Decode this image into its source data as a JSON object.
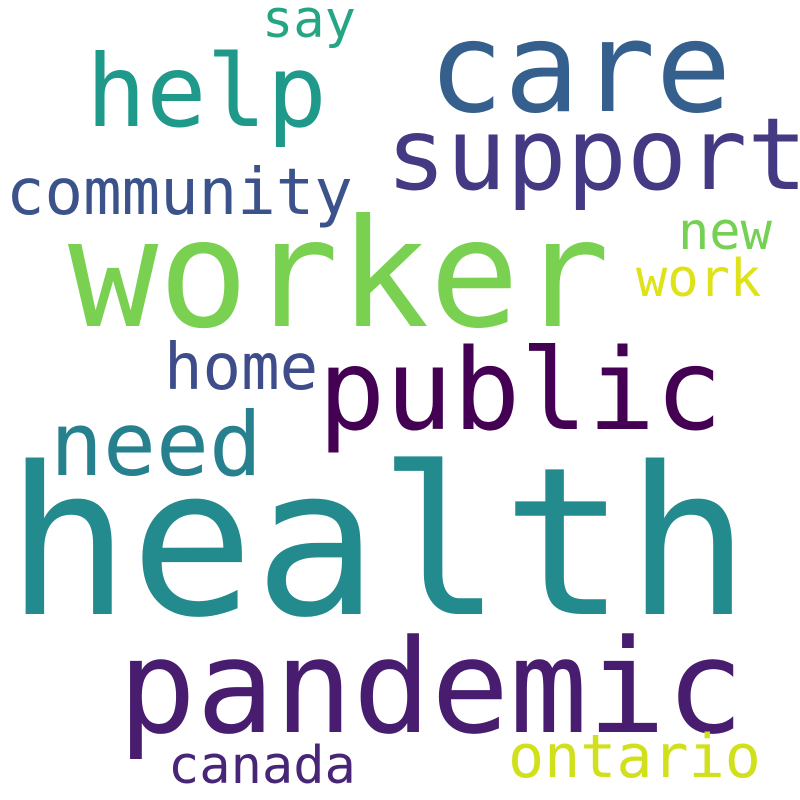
{
  "background": "#ffffff",
  "words": [
    {
      "text": "health",
      "color": "#238a8d"
    },
    {
      "text": "worker",
      "color": "#7ad151"
    },
    {
      "text": "pandemic",
      "color": "#481c6e"
    },
    {
      "text": "care",
      "color": "#355f8d"
    },
    {
      "text": "public",
      "color": "#440154"
    },
    {
      "text": "support",
      "color": "#443983"
    },
    {
      "text": "help",
      "color": "#1f998a"
    },
    {
      "text": "need",
      "color": "#27808e"
    },
    {
      "text": "community",
      "color": "#3b528b"
    },
    {
      "text": "home",
      "color": "#3e4c8a"
    },
    {
      "text": "ontario",
      "color": "#d0e11c"
    },
    {
      "text": "canada",
      "color": "#482576"
    },
    {
      "text": "new",
      "color": "#75d054"
    },
    {
      "text": "work",
      "color": "#dde318"
    },
    {
      "text": "say",
      "color": "#25a584"
    }
  ]
}
